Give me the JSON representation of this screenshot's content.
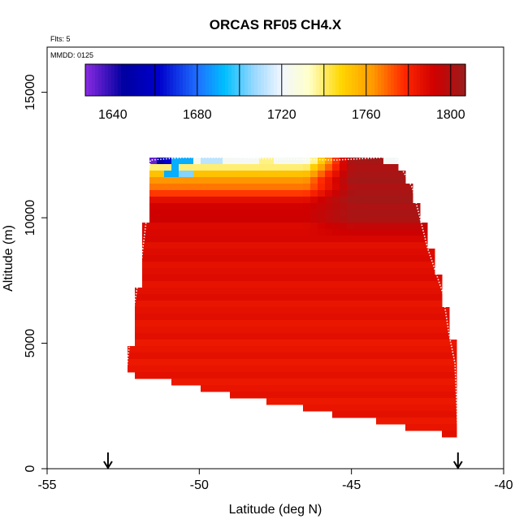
{
  "chart_data": {
    "type": "heatmap",
    "title": "ORCAS RF05 CH4.X",
    "header_left": "Flts: 5",
    "header_date": "MMDD: 0125",
    "xlabel": "Latitude (deg N)",
    "ylabel": "Altitude (m)",
    "xlim": [
      -55,
      -40
    ],
    "ylim": [
      0,
      16800
    ],
    "xticks": [
      {
        "value": -55,
        "label": "-55"
      },
      {
        "value": -50,
        "label": "-50"
      },
      {
        "value": -45,
        "label": "-45"
      },
      {
        "value": -40,
        "label": "-40"
      }
    ],
    "yticks": [
      {
        "value": 0,
        "label": "0"
      },
      {
        "value": 5000,
        "label": "5000"
      },
      {
        "value": 10000,
        "label": "10000"
      },
      {
        "value": 15000,
        "label": "15000"
      }
    ],
    "colorbar": {
      "range": [
        1627,
        1807
      ],
      "ticks": [
        {
          "value": 1640,
          "label": "1640"
        },
        {
          "value": 1680,
          "label": "1680"
        },
        {
          "value": 1720,
          "label": "1720"
        },
        {
          "value": 1760,
          "label": "1760"
        },
        {
          "value": 1800,
          "label": "1800"
        }
      ],
      "stops": [
        {
          "value": 1627,
          "color": "#8a2be2"
        },
        {
          "value": 1645,
          "color": "#0000a0"
        },
        {
          "value": 1662,
          "color": "#0000cd"
        },
        {
          "value": 1680,
          "color": "#1e6fff"
        },
        {
          "value": 1693,
          "color": "#00bfff"
        },
        {
          "value": 1707,
          "color": "#9ad8ff"
        },
        {
          "value": 1720,
          "color": "#f2f7ff"
        },
        {
          "value": 1733,
          "color": "#ffffc8"
        },
        {
          "value": 1748,
          "color": "#ffd700"
        },
        {
          "value": 1763,
          "color": "#ff9a00"
        },
        {
          "value": 1778,
          "color": "#ff2800"
        },
        {
          "value": 1792,
          "color": "#d00000"
        },
        {
          "value": 1807,
          "color": "#9b1c1c"
        }
      ]
    },
    "curtain_edges": {
      "south": [
        {
          "lat": -52.4,
          "alt": 3800
        },
        {
          "lat": -52.1,
          "alt": 6000
        },
        {
          "lat": -51.9,
          "alt": 8300
        },
        {
          "lat": -51.7,
          "alt": 10300
        },
        {
          "lat": -51.7,
          "alt": 12300
        }
      ],
      "north": [
        {
          "lat": -43.6,
          "alt": 12500
        },
        {
          "lat": -43.0,
          "alt": 11200
        },
        {
          "lat": -42.6,
          "alt": 9600
        },
        {
          "lat": -42.0,
          "alt": 7000
        },
        {
          "lat": -41.7,
          "alt": 5400
        },
        {
          "lat": -41.5,
          "alt": 4000
        },
        {
          "lat": -41.5,
          "alt": 1300
        }
      ],
      "bottom": [
        {
          "lat": -52.4,
          "alt": 3800
        },
        {
          "lat": -51.2,
          "alt": 3500
        },
        {
          "lat": -50.2,
          "alt": 3300
        },
        {
          "lat": -49.2,
          "alt": 3000
        },
        {
          "lat": -48.2,
          "alt": 2800
        },
        {
          "lat": -47.2,
          "alt": 2550
        },
        {
          "lat": -46.2,
          "alt": 2300
        },
        {
          "lat": -45.2,
          "alt": 2100
        },
        {
          "lat": -44.2,
          "alt": 1900
        },
        {
          "lat": -43.2,
          "alt": 1650
        },
        {
          "lat": -42.2,
          "alt": 1450
        },
        {
          "lat": -41.5,
          "alt": 1300
        }
      ],
      "top_alt": 12500
    },
    "vertical_profile": [
      {
        "alt": 1300,
        "value": 1785
      },
      {
        "alt": 5000,
        "value": 1785
      },
      {
        "alt": 9000,
        "value": 1788
      },
      {
        "alt": 10500,
        "value": 1793
      },
      {
        "alt": 11000,
        "value": 1775
      },
      {
        "alt": 11500,
        "value": 1762
      },
      {
        "alt": 11900,
        "value": 1748
      },
      {
        "alt": 12200,
        "value": 1728
      },
      {
        "alt": 12500,
        "value": 1700
      }
    ],
    "hotspot": {
      "lat_min": -46.5,
      "lat_max": -42.4,
      "alt_min": 9200,
      "alt_max": 12300,
      "value": 1803
    },
    "anomalies": [
      {
        "lat": -51.6,
        "alt": 12300,
        "value": 1632
      },
      {
        "lat": -51.3,
        "alt": 12300,
        "value": 1648
      },
      {
        "lat": -51.0,
        "alt": 12300,
        "value": 1662
      },
      {
        "lat": -50.6,
        "alt": 12300,
        "value": 1690
      },
      {
        "lat": -49.6,
        "alt": 12300,
        "value": 1712
      },
      {
        "lat": -48.6,
        "alt": 12300,
        "value": 1722
      },
      {
        "lat": -47.8,
        "alt": 12300,
        "value": 1738
      },
      {
        "lat": -43.5,
        "alt": 12500,
        "value": 1680
      },
      {
        "lat": -43.7,
        "alt": 12300,
        "value": 1722
      },
      {
        "lat": -50.8,
        "alt": 11800,
        "value": 1690
      },
      {
        "lat": -50.4,
        "alt": 11800,
        "value": 1705
      }
    ],
    "flight_track": [
      {
        "lat": -52.4,
        "alt": 3800
      },
      {
        "lat": -52.2,
        "alt": 6000
      },
      {
        "lat": -51.9,
        "alt": 8300
      },
      {
        "lat": -51.7,
        "alt": 10300
      },
      {
        "lat": -51.7,
        "alt": 11600
      },
      {
        "lat": -51.6,
        "alt": 12300
      },
      {
        "lat": -50.5,
        "alt": 12400
      },
      {
        "lat": -49.0,
        "alt": 12400
      },
      {
        "lat": -47.5,
        "alt": 12350
      },
      {
        "lat": -45.5,
        "alt": 12300
      },
      {
        "lat": -44.0,
        "alt": 12400
      },
      {
        "lat": -43.6,
        "alt": 12500
      },
      {
        "lat": -43.0,
        "alt": 11200
      },
      {
        "lat": -42.5,
        "alt": 8800
      },
      {
        "lat": -42.0,
        "alt": 7000
      },
      {
        "lat": -41.8,
        "alt": 5400
      },
      {
        "lat": -41.6,
        "alt": 4200
      },
      {
        "lat": -41.5,
        "alt": 1300
      }
    ],
    "markers": [
      {
        "lat": -53.0
      },
      {
        "lat": -41.5
      }
    ]
  }
}
